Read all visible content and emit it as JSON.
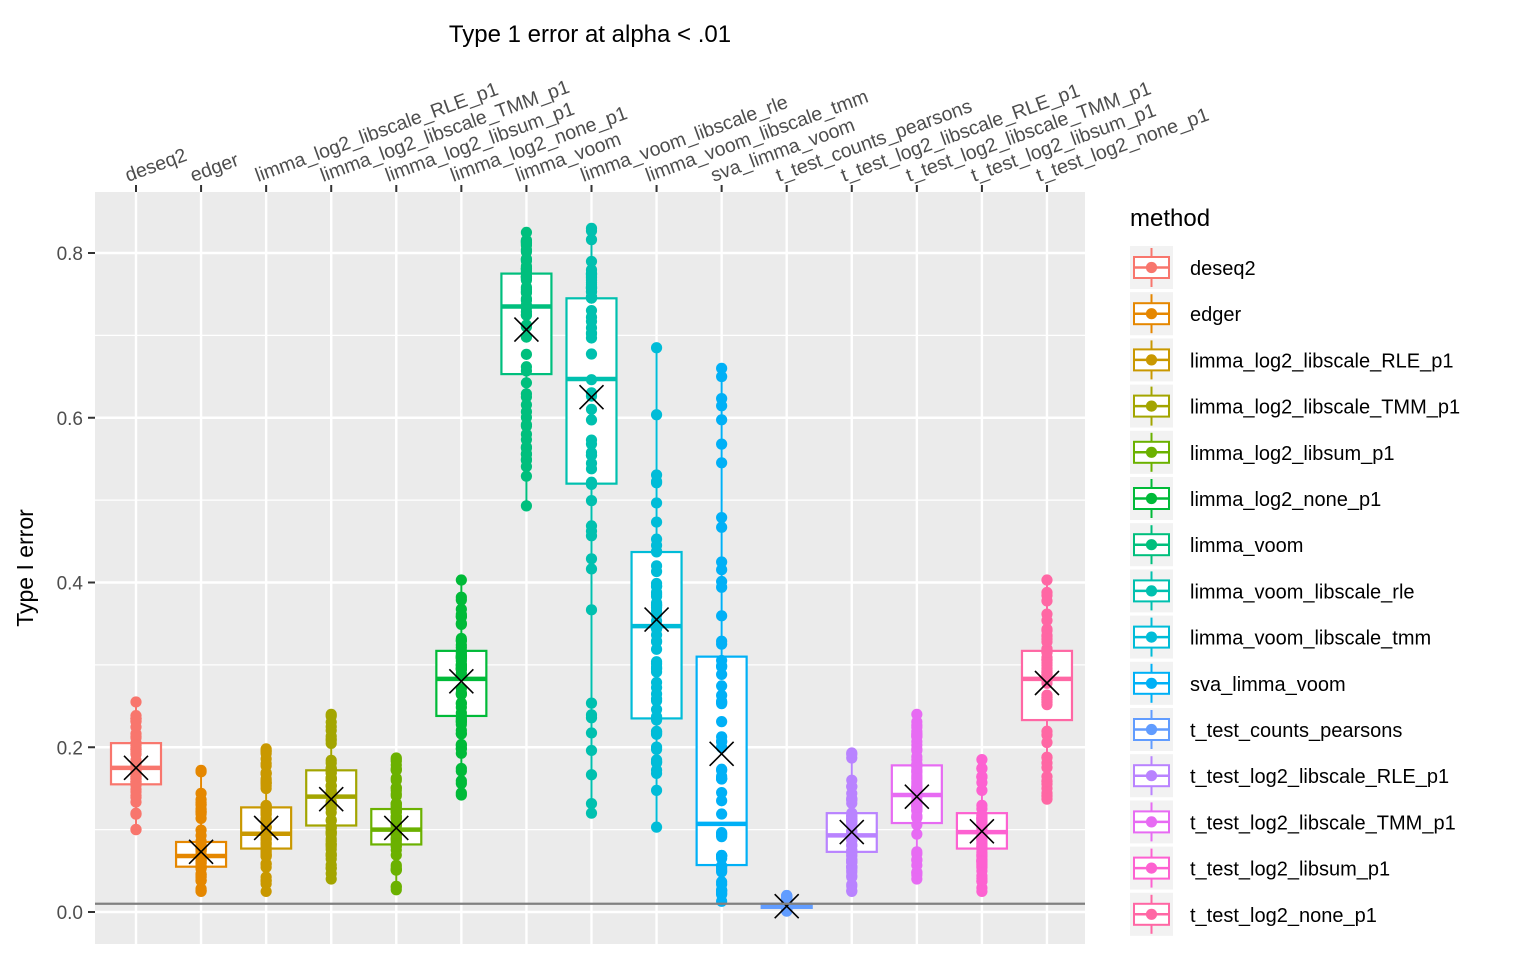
{
  "chart_data": {
    "type": "boxplot",
    "title": "Type 1 error at alpha < .01",
    "ylabel": "Type I error",
    "xlabel": "",
    "ylim": [
      -0.04,
      0.87
    ],
    "yticks": [
      0.0,
      0.2,
      0.4,
      0.6,
      0.8
    ],
    "ytick_labels": [
      "0.0",
      "0.2",
      "0.4",
      "0.6",
      "0.8"
    ],
    "hline": 0.01,
    "legend_title": "method",
    "legend_position": "right",
    "grid": true,
    "categories": [
      "deseq2",
      "edger",
      "limma_log2_libscale_RLE_p1",
      "limma_log2_libscale_TMM_p1",
      "limma_log2_libsum_p1",
      "limma_log2_none_p1",
      "limma_voom",
      "limma_voom_libscale_rle",
      "limma_voom_libscale_tmm",
      "sva_limma_voom",
      "t_test_counts_pearsons",
      "t_test_log2_libscale_RLE_p1",
      "t_test_log2_libscale_TMM_p1",
      "t_test_log2_libsum_p1",
      "t_test_log2_none_p1"
    ],
    "colors": [
      "#F8766D",
      "#E58700",
      "#C99800",
      "#A3A500",
      "#6BB100",
      "#00BA38",
      "#00BF7D",
      "#00C0AF",
      "#00BCD8",
      "#00B0F6",
      "#619CFF",
      "#B983FF",
      "#E76BF3",
      "#FD61D1",
      "#FF67A4"
    ],
    "series": [
      {
        "name": "deseq2",
        "min": 0.1,
        "q1": 0.155,
        "median": 0.175,
        "q3": 0.205,
        "max": 0.255,
        "mean": 0.175
      },
      {
        "name": "edger",
        "min": 0.025,
        "q1": 0.055,
        "median": 0.068,
        "q3": 0.085,
        "max": 0.172,
        "mean": 0.073
      },
      {
        "name": "limma_log2_libscale_RLE_p1",
        "min": 0.025,
        "q1": 0.077,
        "median": 0.095,
        "q3": 0.127,
        "max": 0.198,
        "mean": 0.102
      },
      {
        "name": "limma_log2_libscale_TMM_p1",
        "min": 0.04,
        "q1": 0.105,
        "median": 0.14,
        "q3": 0.172,
        "max": 0.24,
        "mean": 0.137
      },
      {
        "name": "limma_log2_libsum_p1",
        "min": 0.027,
        "q1": 0.082,
        "median": 0.1,
        "q3": 0.125,
        "max": 0.187,
        "mean": 0.102
      },
      {
        "name": "limma_log2_none_p1",
        "min": 0.142,
        "q1": 0.238,
        "median": 0.283,
        "q3": 0.317,
        "max": 0.403,
        "mean": 0.28
      },
      {
        "name": "limma_voom",
        "min": 0.493,
        "q1": 0.653,
        "median": 0.735,
        "q3": 0.775,
        "max": 0.825,
        "mean": 0.707
      },
      {
        "name": "limma_voom_libscale_rle",
        "min": 0.12,
        "q1": 0.52,
        "median": 0.647,
        "q3": 0.745,
        "max": 0.83,
        "mean": 0.625
      },
      {
        "name": "limma_voom_libscale_tmm",
        "min": 0.103,
        "q1": 0.235,
        "median": 0.347,
        "q3": 0.437,
        "max": 0.685,
        "mean": 0.355
      },
      {
        "name": "sva_limma_voom",
        "min": 0.013,
        "q1": 0.057,
        "median": 0.107,
        "q3": 0.31,
        "max": 0.66,
        "mean": 0.192
      },
      {
        "name": "t_test_counts_pearsons",
        "min": 0.001,
        "q1": 0.005,
        "median": 0.007,
        "q3": 0.01,
        "max": 0.02,
        "mean": 0.007
      },
      {
        "name": "t_test_log2_libscale_RLE_p1",
        "min": 0.025,
        "q1": 0.073,
        "median": 0.093,
        "q3": 0.12,
        "max": 0.193,
        "mean": 0.097
      },
      {
        "name": "t_test_log2_libscale_TMM_p1",
        "min": 0.04,
        "q1": 0.108,
        "median": 0.142,
        "q3": 0.178,
        "max": 0.24,
        "mean": 0.14
      },
      {
        "name": "t_test_log2_libsum_p1",
        "min": 0.025,
        "q1": 0.077,
        "median": 0.097,
        "q3": 0.12,
        "max": 0.185,
        "mean": 0.098
      },
      {
        "name": "t_test_log2_none_p1",
        "min": 0.137,
        "q1": 0.233,
        "median": 0.283,
        "q3": 0.317,
        "max": 0.403,
        "mean": 0.278
      }
    ]
  }
}
